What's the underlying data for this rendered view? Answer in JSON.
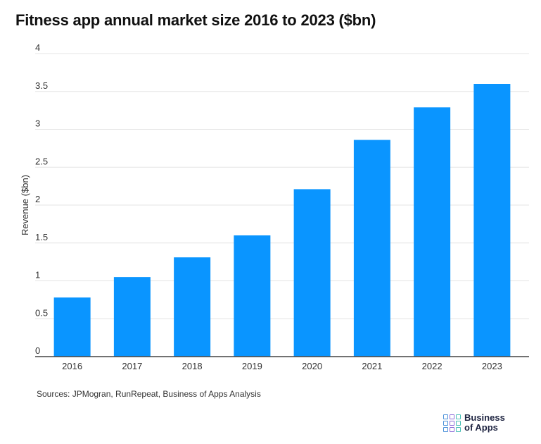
{
  "title": "Fitness app annual market size 2016 to 2023 ($bn)",
  "source": "Sources: JPMogran, RunRepeat, Business of Apps Analysis",
  "logo": {
    "line1": "Business",
    "line2": "of Apps"
  },
  "colors": {
    "bar": "#0a95ff",
    "grid": "#e4e4e4",
    "axis": "#444444",
    "logo_squares": [
      "#4a90d9",
      "#8c6ad8",
      "#49c0b6"
    ]
  },
  "chart_data": {
    "type": "bar",
    "title": "Fitness app annual market size 2016 to 2023 ($bn)",
    "xlabel": "",
    "ylabel": "Revenue ($bn)",
    "categories": [
      "2016",
      "2017",
      "2018",
      "2019",
      "2020",
      "2021",
      "2022",
      "2023"
    ],
    "values": [
      0.78,
      1.05,
      1.31,
      1.6,
      2.21,
      2.86,
      3.29,
      3.6
    ],
    "ylim": [
      0,
      4
    ],
    "yticks": [
      "0",
      "0.5",
      "1",
      "1.5",
      "2",
      "2.5",
      "3",
      "3.5",
      "4"
    ],
    "grid": true,
    "legend": "none"
  }
}
